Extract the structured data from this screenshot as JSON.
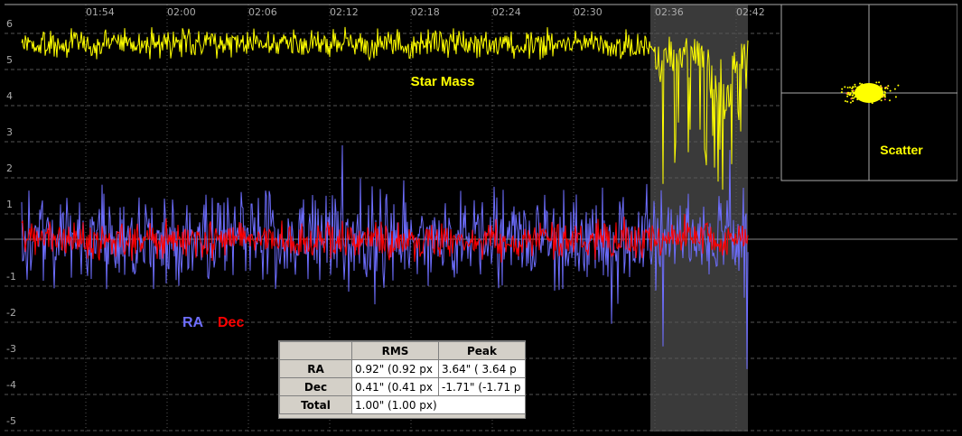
{
  "chart_data": {
    "type": "line",
    "x_tick_labels": [
      "01:54",
      "02:00",
      "02:06",
      "02:12",
      "02:18",
      "02:24",
      "02:30",
      "02:36",
      "02:42"
    ],
    "y_tick_labels": [
      "6",
      "5",
      "4",
      "3",
      "2",
      "1",
      "-1",
      "-2",
      "-3",
      "-4",
      "-5"
    ],
    "ylim": [
      -5,
      6
    ],
    "grid": true,
    "series": [
      {
        "name": "Star Mass",
        "color": "#ffff00"
      },
      {
        "name": "RA",
        "color": "#6e6eff"
      },
      {
        "name": "Dec",
        "color": "#ff0000"
      }
    ],
    "scatter_label": "Scatter"
  },
  "stats": {
    "headers": [
      "",
      "RMS",
      "Peak"
    ],
    "rows": [
      {
        "label": "RA",
        "rms": "0.92\" (0.92 px",
        "peak": "3.64\" ( 3.64 p"
      },
      {
        "label": "Dec",
        "rms": "0.41\" (0.41 px",
        "peak": "-1.71\" (-1.71 p"
      },
      {
        "label": "Total",
        "rms": "1.00\" (1.00 px)",
        "peak": ""
      }
    ]
  },
  "colors": {
    "background": "#000000",
    "grid": "#555555",
    "axis": "#aaaaaa",
    "selection": "#3a3a3a",
    "star_mass": "#ffff00",
    "ra": "#6e6eff",
    "dec": "#ff0000"
  }
}
